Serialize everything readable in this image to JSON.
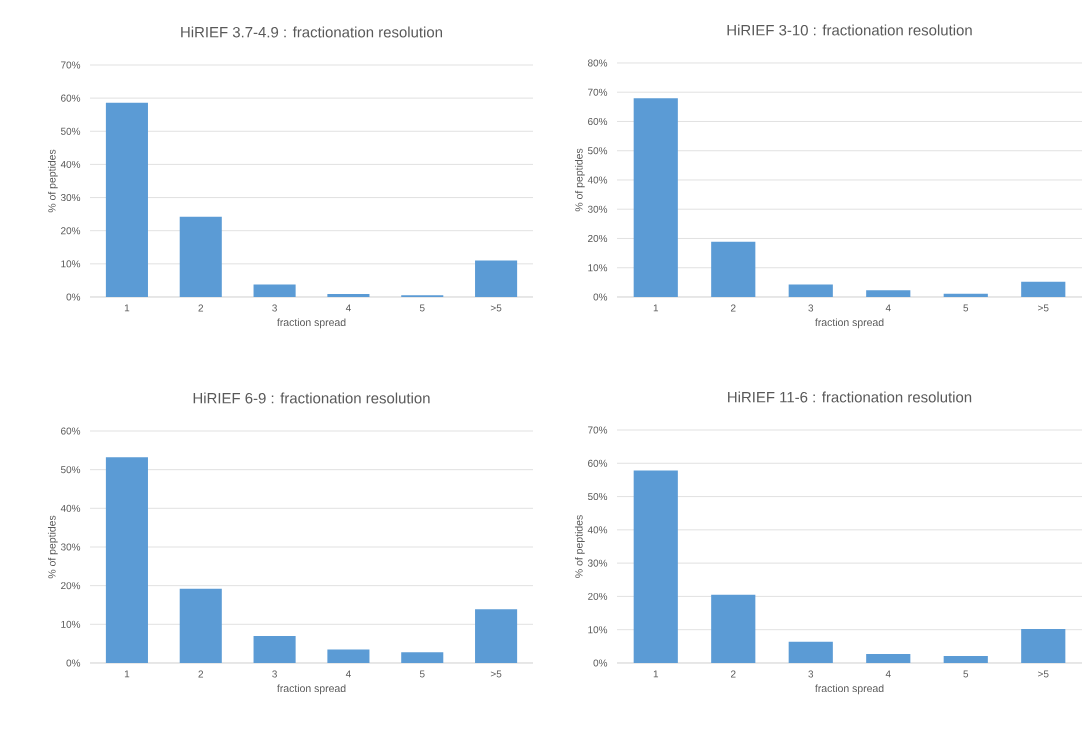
{
  "chart_data": [
    {
      "type": "bar",
      "title": "HiRIEF 3.7-4.9 : fractionation resolution",
      "xlabel": "fraction spread",
      "ylabel": "% of peptides",
      "categories": [
        "1",
        "2",
        "3",
        "4",
        "5",
        ">5"
      ],
      "values": [
        58.6,
        24.2,
        3.8,
        0.9,
        0.5,
        11.0
      ],
      "color": "#5b9bd5",
      "ylim": [
        0,
        70
      ],
      "yticks": [
        {
          "value": 0,
          "label": "0%"
        },
        {
          "value": 10,
          "label": "10%"
        },
        {
          "value": 20,
          "label": "20%"
        },
        {
          "value": 30,
          "label": "30%"
        },
        {
          "value": 40,
          "label": "40%"
        },
        {
          "value": 50,
          "label": "50%"
        },
        {
          "value": 60,
          "label": "60%"
        },
        {
          "value": 70,
          "label": "70%"
        }
      ],
      "grid": "y"
    },
    {
      "type": "bar",
      "title": "HiRIEF 3-10 : fractionation resolution",
      "xlabel": "fraction spread",
      "ylabel": "% of peptides",
      "categories": [
        "1",
        "2",
        "3",
        "4",
        "5",
        ">5"
      ],
      "values": [
        67.9,
        18.9,
        4.3,
        2.3,
        1.1,
        5.2
      ],
      "color": "#5b9bd5",
      "ylim": [
        0,
        80
      ],
      "yticks": [
        {
          "value": 0,
          "label": "0%"
        },
        {
          "value": 10,
          "label": "10%"
        },
        {
          "value": 20,
          "label": "20%"
        },
        {
          "value": 30,
          "label": "30%"
        },
        {
          "value": 40,
          "label": "40%"
        },
        {
          "value": 50,
          "label": "50%"
        },
        {
          "value": 60,
          "label": "60%"
        },
        {
          "value": 70,
          "label": "70%"
        },
        {
          "value": 80,
          "label": "80%"
        }
      ],
      "grid": "y"
    },
    {
      "type": "bar",
      "title": "HiRIEF 6-9 : fractionation resolution",
      "xlabel": "fraction spread",
      "ylabel": "% of peptides",
      "categories": [
        "1",
        "2",
        "3",
        "4",
        "5",
        ">5"
      ],
      "values": [
        53.2,
        19.2,
        7.0,
        3.5,
        2.8,
        13.9
      ],
      "color": "#5b9bd5",
      "ylim": [
        0,
        60
      ],
      "yticks": [
        {
          "value": 0,
          "label": "0%"
        },
        {
          "value": 10,
          "label": "10%"
        },
        {
          "value": 20,
          "label": "20%"
        },
        {
          "value": 30,
          "label": "30%"
        },
        {
          "value": 40,
          "label": "40%"
        },
        {
          "value": 50,
          "label": "50%"
        },
        {
          "value": 60,
          "label": "60%"
        }
      ],
      "grid": "y"
    },
    {
      "type": "bar",
      "title": "HiRIEF 11-6 : fractionation resolution",
      "xlabel": "fraction spread",
      "ylabel": "% of peptides",
      "categories": [
        "1",
        "2",
        "3",
        "4",
        "5",
        ">5"
      ],
      "values": [
        57.8,
        20.5,
        6.4,
        2.7,
        2.1,
        10.2
      ],
      "color": "#5b9bd5",
      "ylim": [
        0,
        70
      ],
      "yticks": [
        {
          "value": 0,
          "label": "0%"
        },
        {
          "value": 10,
          "label": "10%"
        },
        {
          "value": 20,
          "label": "20%"
        },
        {
          "value": 30,
          "label": "30%"
        },
        {
          "value": 40,
          "label": "40%"
        },
        {
          "value": 50,
          "label": "50%"
        },
        {
          "value": 60,
          "label": "60%"
        },
        {
          "value": 70,
          "label": "70%"
        }
      ],
      "grid": "y"
    }
  ]
}
